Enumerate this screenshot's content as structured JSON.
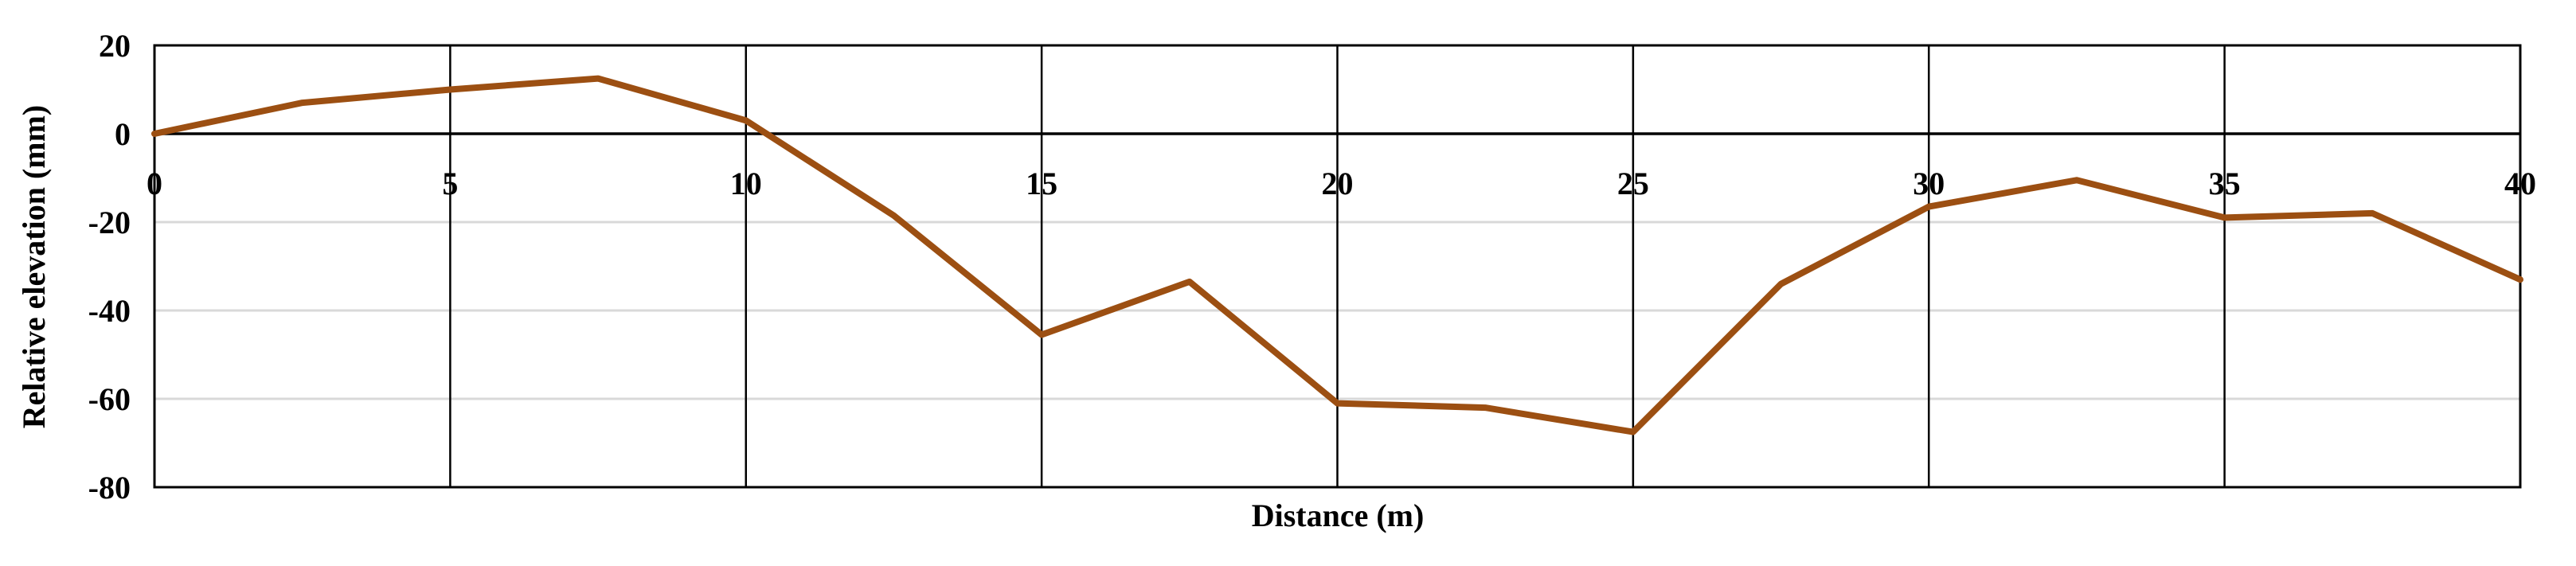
{
  "chart_data": {
    "type": "line",
    "title": "",
    "xlabel": "Distance (m)",
    "ylabel": "Relative elevation (mm)",
    "xlim": [
      0,
      40
    ],
    "ylim": [
      -80,
      20
    ],
    "xticks": [
      0,
      5,
      10,
      15,
      20,
      25,
      30,
      35,
      40
    ],
    "yticks": [
      20,
      0,
      -20,
      -40,
      -60,
      -80
    ],
    "x_tick_labels_position": "along y=0 axis",
    "grid": true,
    "legend": "none",
    "series": [
      {
        "color": "#9C4F12",
        "x": [
          0,
          2.5,
          5,
          7.5,
          10,
          12.5,
          15,
          17.5,
          20,
          22.5,
          25,
          27.5,
          30,
          32.5,
          35,
          37.5,
          40
        ],
        "y": [
          0,
          7,
          10,
          12.5,
          3,
          -18.5,
          -45.5,
          -33.5,
          -61,
          -62,
          -67.5,
          -34,
          -16.5,
          -10.5,
          -19,
          -18,
          -33
        ]
      }
    ],
    "colors": {
      "line": "#9C4F12",
      "major_grid": "#000000",
      "minor_grid": "#D9D9D9",
      "frame": "#000000"
    }
  }
}
